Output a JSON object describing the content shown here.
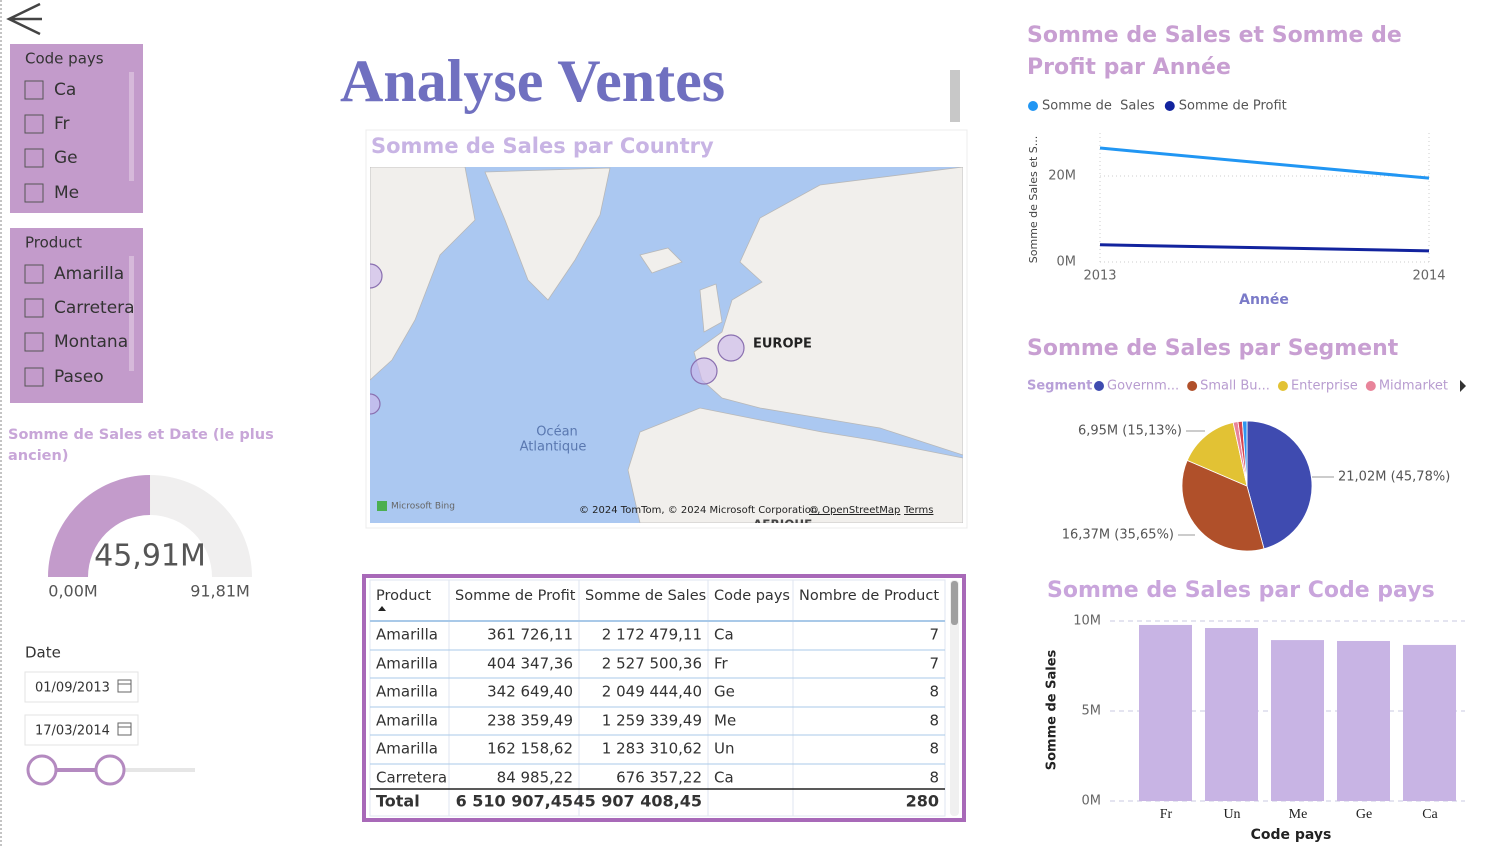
{
  "slicers": [
    {
      "title": "Code pays",
      "items": [
        "Ca",
        "Fr",
        "Ge",
        "Me"
      ]
    },
    {
      "title": "Product",
      "items": [
        "Amarilla",
        "Carretera",
        "Montana",
        "Paseo"
      ]
    }
  ],
  "report_title": "Analyse Ventes",
  "map": {
    "title": "Somme de Sales par Country",
    "labels": {
      "europe": "EUROPE",
      "ocean": [
        "Océan",
        "Atlantique"
      ],
      "africa": "AFRIQUE"
    },
    "provider": "Microsoft Bing",
    "attribution": "© 2024 TomTom, © 2024 Microsoft Corporation,",
    "osm": "© OpenStreetMap",
    "terms": "Terms"
  },
  "gauge": {
    "title": "Somme de Sales et Date (le plus ancien)",
    "value": 45.91,
    "value_label": "45,91M",
    "min": 0,
    "min_label": "0,00M",
    "max": 91.81,
    "max_label": "91,81M",
    "color": "#c39bcb"
  },
  "date_slicer": {
    "label": "Date",
    "start": "01/09/2013",
    "end": "17/03/2014"
  },
  "table": {
    "columns": [
      "Product",
      "Somme de Profit",
      "Somme de Sales",
      "Code pays",
      "Nombre de Product"
    ],
    "rows": [
      [
        "Amarilla",
        "361 726,11",
        "2 172 479,11",
        "Ca",
        "7"
      ],
      [
        "Amarilla",
        "404 347,36",
        "2 527 500,36",
        "Fr",
        "7"
      ],
      [
        "Amarilla",
        "342 649,40",
        "2 049 444,40",
        "Ge",
        "8"
      ],
      [
        "Amarilla",
        "238 359,49",
        "1 259 339,49",
        "Me",
        "8"
      ],
      [
        "Amarilla",
        "162 158,62",
        "1 283 310,62",
        "Un",
        "8"
      ],
      [
        "Carretera",
        "84 985,22",
        "676 357,22",
        "Ca",
        "8"
      ]
    ],
    "total": [
      "Total",
      "6 510 907,45",
      "45 907 408,45",
      null,
      "280"
    ]
  },
  "chart_data": [
    {
      "type": "line",
      "title": "Somme de Sales et Somme de Profit par Année",
      "x": [
        2013,
        2014
      ],
      "xlim": [
        2013,
        2014
      ],
      "xticks": [
        2013,
        2014
      ],
      "series": [
        {
          "name": "Somme de  Sales",
          "color": "#2196f3",
          "values": [
            26.5,
            19.5
          ]
        },
        {
          "name": "Somme de Profit",
          "color": "#12239e",
          "values": [
            4.0,
            2.6
          ]
        }
      ],
      "ylim": [
        0,
        30
      ],
      "yticks": [
        {
          "value": 0,
          "label": "0M"
        },
        {
          "value": 20,
          "label": "20M"
        }
      ],
      "ylabel": "Somme de Sales et S...",
      "xlabel": "Année",
      "grid": true
    },
    {
      "type": "pie",
      "title": "Somme de Sales par Segment",
      "legend_title": "Segment",
      "categories": [
        "Governm...",
        "Small Bu...",
        "Enterprise",
        "Midmarket",
        null,
        null
      ],
      "values": [
        21.02,
        16.37,
        6.95,
        0.55,
        0.5,
        0.52
      ],
      "value_labels": [
        "21,02M (45,78%)",
        "16,37M (35,65%)",
        "6,95M (15,13%)",
        null,
        null,
        null
      ],
      "colors": [
        "#3f4bb0",
        "#b0502a",
        "#e2c234",
        "#e8849a",
        "#d64550",
        "#2f95ee"
      ]
    },
    {
      "type": "bar",
      "title": "Somme de Sales par Code pays",
      "categories": [
        "Fr",
        "Un",
        "Me",
        "Ge",
        "Ca"
      ],
      "values": [
        9.78,
        9.61,
        8.94,
        8.89,
        8.67
      ],
      "color": "#c8b4e4",
      "ylim": [
        0,
        10
      ],
      "yticks": [
        {
          "value": 0,
          "label": "0M"
        },
        {
          "value": 5,
          "label": "5M"
        },
        {
          "value": 10,
          "label": "10M"
        }
      ],
      "ylabel": "Somme de Sales",
      "xlabel": "Code pays",
      "grid": true
    }
  ]
}
